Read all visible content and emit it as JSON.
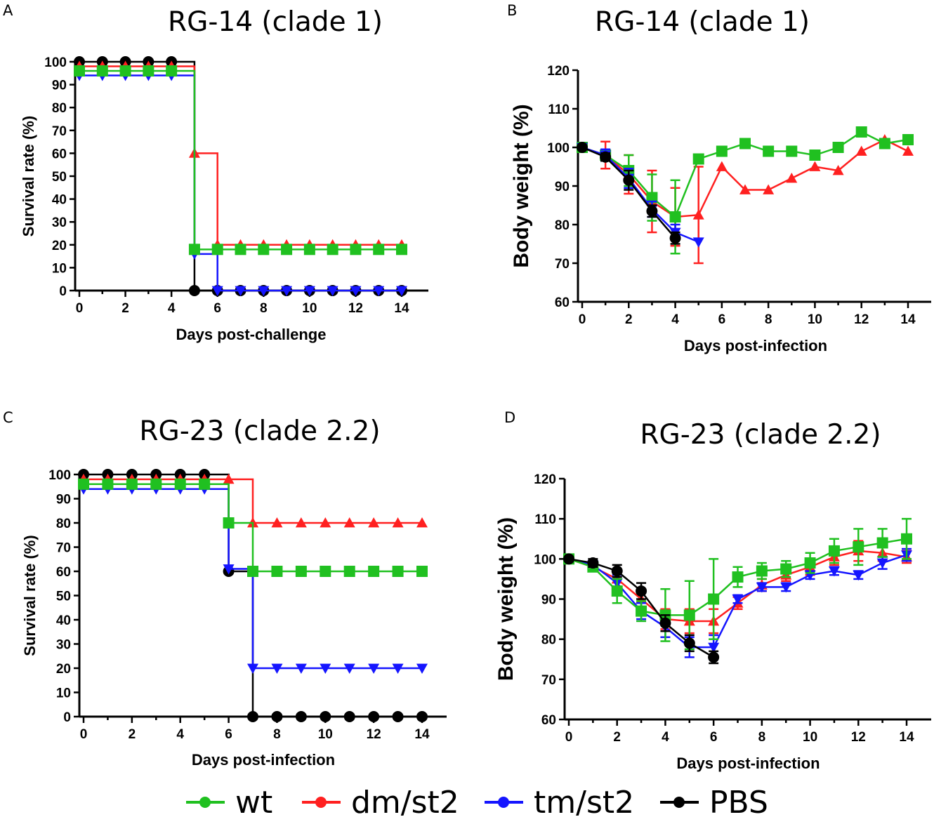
{
  "legend": {
    "items": [
      {
        "key": "wt",
        "label": "wt",
        "color": "#20c020",
        "marker": "square"
      },
      {
        "key": "dm",
        "label": "dm/st2",
        "color": "#ff2020",
        "marker": "triangle-up"
      },
      {
        "key": "tm",
        "label": "tm/st2",
        "color": "#1515ff",
        "marker": "triangle-down"
      },
      {
        "key": "pbs",
        "label": "PBS",
        "color": "#000000",
        "marker": "circle"
      }
    ]
  },
  "chart_data": [
    {
      "id": "A",
      "panel_letter": "A",
      "type": "line",
      "step": true,
      "title": "RG-14 (clade 1)",
      "xlabel": "Days post-challenge",
      "ylabel": "Survival rate (%)",
      "xlim": [
        0,
        14
      ],
      "ylim": [
        0,
        100
      ],
      "xticks": [
        0,
        2,
        4,
        6,
        8,
        10,
        12,
        14
      ],
      "yticks": [
        0,
        10,
        20,
        30,
        40,
        50,
        60,
        70,
        80,
        90,
        100
      ],
      "series": [
        {
          "key": "pbs",
          "name": "PBS",
          "points": [
            [
              0,
              100
            ],
            [
              1,
              100
            ],
            [
              2,
              100
            ],
            [
              3,
              100
            ],
            [
              4,
              100
            ],
            [
              5,
              0
            ],
            [
              6,
              0
            ],
            [
              7,
              0
            ],
            [
              8,
              0
            ],
            [
              9,
              0
            ],
            [
              10,
              0
            ],
            [
              11,
              0
            ],
            [
              12,
              0
            ],
            [
              13,
              0
            ],
            [
              14,
              0
            ]
          ]
        },
        {
          "key": "dm",
          "name": "dm/st2",
          "points": [
            [
              0,
              98
            ],
            [
              1,
              98
            ],
            [
              2,
              98
            ],
            [
              3,
              98
            ],
            [
              4,
              98
            ],
            [
              5,
              60
            ],
            [
              6,
              20
            ],
            [
              7,
              20
            ],
            [
              8,
              20
            ],
            [
              9,
              20
            ],
            [
              10,
              20
            ],
            [
              11,
              20
            ],
            [
              12,
              20
            ],
            [
              13,
              20
            ],
            [
              14,
              20
            ]
          ]
        },
        {
          "key": "tm",
          "name": "tm/st2",
          "points": [
            [
              0,
              94
            ],
            [
              1,
              94
            ],
            [
              2,
              94
            ],
            [
              3,
              94
            ],
            [
              4,
              94
            ],
            [
              5,
              16
            ],
            [
              6,
              0
            ],
            [
              7,
              0
            ],
            [
              8,
              0
            ],
            [
              9,
              0
            ],
            [
              10,
              0
            ],
            [
              11,
              0
            ],
            [
              12,
              0
            ],
            [
              13,
              0
            ],
            [
              14,
              0
            ]
          ]
        },
        {
          "key": "wt",
          "name": "wt",
          "points": [
            [
              0,
              96
            ],
            [
              1,
              96
            ],
            [
              2,
              96
            ],
            [
              3,
              96
            ],
            [
              4,
              96
            ],
            [
              5,
              18
            ],
            [
              6,
              18
            ],
            [
              7,
              18
            ],
            [
              8,
              18
            ],
            [
              9,
              18
            ],
            [
              10,
              18
            ],
            [
              11,
              18
            ],
            [
              12,
              18
            ],
            [
              13,
              18
            ],
            [
              14,
              18
            ]
          ]
        }
      ]
    },
    {
      "id": "B",
      "panel_letter": "B",
      "type": "line",
      "step": false,
      "title": "RG-14 (clade 1)",
      "xlabel": "Days post-infection",
      "ylabel": "Body weight (%)",
      "xlim": [
        0,
        14
      ],
      "ylim": [
        60,
        120
      ],
      "xticks": [
        0,
        2,
        4,
        6,
        8,
        10,
        12,
        14
      ],
      "yticks": [
        60,
        70,
        80,
        90,
        100,
        110,
        120
      ],
      "series": [
        {
          "key": "dm",
          "name": "dm/st2",
          "points": [
            [
              0,
              100
            ],
            [
              1,
              98
            ],
            [
              2,
              93
            ],
            [
              3,
              86
            ],
            [
              4,
              82
            ],
            [
              5,
              82.5
            ],
            [
              6,
              95
            ],
            [
              7,
              89
            ],
            [
              8,
              89
            ],
            [
              9,
              92
            ],
            [
              10,
              95
            ],
            [
              11,
              94
            ],
            [
              12,
              99
            ],
            [
              13,
              102
            ],
            [
              14,
              99
            ]
          ],
          "errors": [
            0,
            3.5,
            5,
            8,
            7.5,
            12.5,
            0,
            0,
            0,
            0,
            0,
            0,
            0,
            0,
            0
          ]
        },
        {
          "key": "wt",
          "name": "wt",
          "points": [
            [
              0,
              100
            ],
            [
              1,
              98
            ],
            [
              2,
              94
            ],
            [
              3,
              87
            ],
            [
              4,
              82
            ],
            [
              5,
              97
            ],
            [
              6,
              99
            ],
            [
              7,
              101
            ],
            [
              8,
              99
            ],
            [
              9,
              99
            ],
            [
              10,
              98
            ],
            [
              11,
              100
            ],
            [
              12,
              104
            ],
            [
              13,
              101
            ],
            [
              14,
              102
            ]
          ],
          "errors": [
            0,
            1.5,
            4,
            6,
            9.5,
            0,
            0,
            0,
            0,
            0,
            0,
            0,
            0,
            0,
            0
          ]
        },
        {
          "key": "tm",
          "name": "tm/st2",
          "points": [
            [
              0,
              100
            ],
            [
              1,
              98
            ],
            [
              2,
              92
            ],
            [
              3,
              84
            ],
            [
              4,
              78
            ],
            [
              5,
              75.5
            ]
          ],
          "errors": [
            0,
            1.5,
            2.5,
            2,
            2,
            0
          ]
        },
        {
          "key": "pbs",
          "name": "PBS",
          "points": [
            [
              0,
              100
            ],
            [
              1,
              97.5
            ],
            [
              2,
              91.5
            ],
            [
              3,
              83.5
            ],
            [
              4,
              76.5
            ]
          ],
          "errors": [
            0,
            1,
            2.5,
            1.5,
            1.5
          ]
        }
      ]
    },
    {
      "id": "C",
      "panel_letter": "C",
      "type": "line",
      "step": true,
      "title": "RG-23 (clade 2.2)",
      "xlabel": "Days post-infection",
      "ylabel": "Survival rate (%)",
      "xlim": [
        0,
        14
      ],
      "ylim": [
        0,
        100
      ],
      "xticks": [
        0,
        2,
        4,
        6,
        8,
        10,
        12,
        14
      ],
      "yticks": [
        0,
        10,
        20,
        30,
        40,
        50,
        60,
        70,
        80,
        90,
        100
      ],
      "series": [
        {
          "key": "pbs",
          "name": "PBS",
          "points": [
            [
              0,
              100
            ],
            [
              1,
              100
            ],
            [
              2,
              100
            ],
            [
              3,
              100
            ],
            [
              4,
              100
            ],
            [
              5,
              100
            ],
            [
              6,
              60
            ],
            [
              7,
              0
            ],
            [
              8,
              0
            ],
            [
              9,
              0
            ],
            [
              10,
              0
            ],
            [
              11,
              0
            ],
            [
              12,
              0
            ],
            [
              13,
              0
            ],
            [
              14,
              0
            ]
          ]
        },
        {
          "key": "dm",
          "name": "dm/st2",
          "points": [
            [
              0,
              98
            ],
            [
              1,
              98
            ],
            [
              2,
              98
            ],
            [
              3,
              98
            ],
            [
              4,
              98
            ],
            [
              5,
              98
            ],
            [
              6,
              98
            ],
            [
              7,
              80
            ],
            [
              8,
              80
            ],
            [
              9,
              80
            ],
            [
              10,
              80
            ],
            [
              11,
              80
            ],
            [
              12,
              80
            ],
            [
              13,
              80
            ],
            [
              14,
              80
            ]
          ]
        },
        {
          "key": "tm",
          "name": "tm/st2",
          "points": [
            [
              0,
              94
            ],
            [
              1,
              94
            ],
            [
              2,
              94
            ],
            [
              3,
              94
            ],
            [
              4,
              94
            ],
            [
              5,
              94
            ],
            [
              6,
              61
            ],
            [
              7,
              20
            ],
            [
              8,
              20
            ],
            [
              9,
              20
            ],
            [
              10,
              20
            ],
            [
              11,
              20
            ],
            [
              12,
              20
            ],
            [
              13,
              20
            ],
            [
              14,
              20
            ]
          ]
        },
        {
          "key": "wt",
          "name": "wt",
          "points": [
            [
              0,
              96
            ],
            [
              1,
              96
            ],
            [
              2,
              96
            ],
            [
              3,
              96
            ],
            [
              4,
              96
            ],
            [
              5,
              96
            ],
            [
              6,
              80
            ],
            [
              7,
              60
            ],
            [
              8,
              60
            ],
            [
              9,
              60
            ],
            [
              10,
              60
            ],
            [
              11,
              60
            ],
            [
              12,
              60
            ],
            [
              13,
              60
            ],
            [
              14,
              60
            ]
          ]
        }
      ]
    },
    {
      "id": "D",
      "panel_letter": "D",
      "type": "line",
      "step": false,
      "title": "RG-23 (clade 2.2)",
      "xlabel": "Days post-infection",
      "ylabel": "Body weight (%)",
      "xlim": [
        0,
        14
      ],
      "ylim": [
        60,
        120
      ],
      "xticks": [
        0,
        2,
        4,
        6,
        8,
        10,
        12,
        14
      ],
      "yticks": [
        60,
        70,
        80,
        90,
        100,
        110,
        120
      ],
      "series": [
        {
          "key": "dm",
          "name": "dm/st2",
          "points": [
            [
              0,
              100
            ],
            [
              1,
              98
            ],
            [
              2,
              95
            ],
            [
              3,
              90
            ],
            [
              4,
              85
            ],
            [
              5,
              84.5
            ],
            [
              6,
              84.5
            ],
            [
              7,
              89
            ],
            [
              8,
              93.5
            ],
            [
              9,
              96
            ],
            [
              10,
              98
            ],
            [
              11,
              100.5
            ],
            [
              12,
              102
            ],
            [
              13,
              101.5
            ],
            [
              14,
              100.5
            ]
          ],
          "errors": [
            0,
            1,
            2,
            2.5,
            2.5,
            3,
            3,
            1.5,
            1.5,
            1.5,
            2,
            2,
            2.5,
            2,
            1.5
          ]
        },
        {
          "key": "tm",
          "name": "tm/st2",
          "points": [
            [
              0,
              100
            ],
            [
              1,
              98.5
            ],
            [
              2,
              94
            ],
            [
              3,
              87
            ],
            [
              4,
              83
            ],
            [
              5,
              78
            ],
            [
              6,
              78
            ],
            [
              7,
              90
            ],
            [
              8,
              93
            ],
            [
              9,
              93
            ],
            [
              10,
              96
            ],
            [
              11,
              97
            ],
            [
              12,
              96
            ],
            [
              13,
              99
            ],
            [
              14,
              101
            ]
          ],
          "errors": [
            0,
            1,
            2,
            2,
            2.5,
            2.5,
            3,
            1,
            1,
            1,
            1,
            1,
            1,
            1.5,
            1.5
          ]
        },
        {
          "key": "wt",
          "name": "wt",
          "points": [
            [
              0,
              100
            ],
            [
              1,
              98
            ],
            [
              2,
              92
            ],
            [
              3,
              87
            ],
            [
              4,
              86
            ],
            [
              5,
              86
            ],
            [
              6,
              90
            ],
            [
              7,
              95.5
            ],
            [
              8,
              97
            ],
            [
              9,
              97.5
            ],
            [
              10,
              99
            ],
            [
              11,
              102
            ],
            [
              12,
              103
            ],
            [
              13,
              104
            ],
            [
              14,
              105
            ]
          ],
          "errors": [
            0,
            1,
            3,
            2.5,
            6.5,
            8.5,
            10,
            2.5,
            2,
            2,
            2.5,
            3,
            4.5,
            3.5,
            5
          ]
        },
        {
          "key": "pbs",
          "name": "PBS",
          "points": [
            [
              0,
              100
            ],
            [
              1,
              99
            ],
            [
              2,
              97
            ],
            [
              3,
              92
            ],
            [
              4,
              84
            ],
            [
              5,
              79
            ],
            [
              6,
              75.5
            ]
          ],
          "errors": [
            0,
            1,
            1.5,
            2,
            2,
            2,
            1.5
          ]
        }
      ]
    }
  ]
}
